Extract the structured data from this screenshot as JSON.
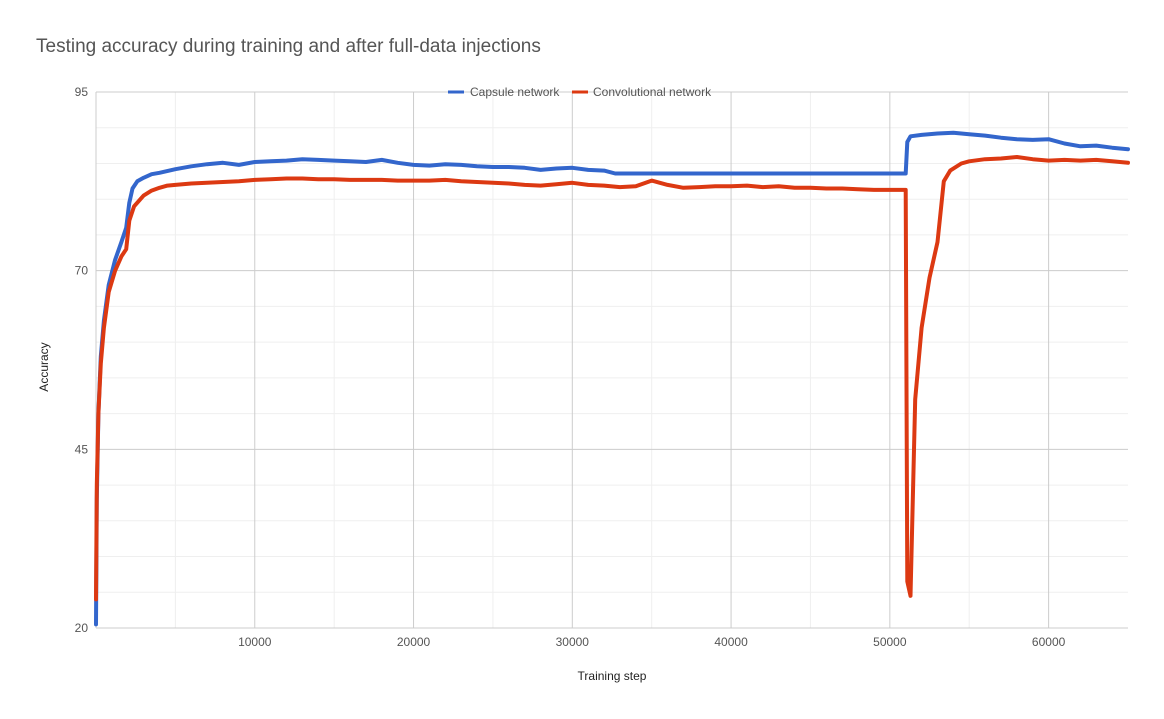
{
  "chart_data": {
    "type": "line",
    "title": "Testing accuracy during training and after full-data injections",
    "xlabel": "Training step",
    "ylabel": "Accuracy",
    "xlim": [
      0,
      65000
    ],
    "ylim": [
      20,
      95
    ],
    "xticks": [
      10000,
      20000,
      30000,
      40000,
      50000,
      60000
    ],
    "yticks": [
      20,
      45,
      70,
      95
    ],
    "grid": true,
    "legend_position": "top",
    "series": [
      {
        "name": "Capsule network",
        "color": "#3366cc",
        "x": [
          0,
          50,
          150,
          300,
          500,
          800,
          1200,
          1600,
          1900,
          2100,
          2300,
          2600,
          3000,
          3500,
          4000,
          5000,
          6000,
          7000,
          8000,
          9000,
          10000,
          11000,
          12000,
          13000,
          14000,
          15000,
          16000,
          17000,
          18000,
          19000,
          20000,
          21000,
          22000,
          23000,
          24000,
          25000,
          26000,
          27000,
          28000,
          29000,
          30000,
          31000,
          32000,
          32700,
          33000,
          40000,
          45000,
          50000,
          51000,
          51100,
          51300,
          52000,
          53000,
          54000,
          55000,
          56000,
          57000,
          58000,
          59000,
          60000,
          61000,
          62000,
          63000,
          64000,
          65000
        ],
        "y": [
          20.5,
          38,
          50,
          58,
          63,
          68,
          71.5,
          74,
          76,
          79.5,
          81.5,
          82.5,
          83,
          83.5,
          83.7,
          84.2,
          84.6,
          84.9,
          85.1,
          84.8,
          85.2,
          85.3,
          85.4,
          85.6,
          85.5,
          85.4,
          85.3,
          85.2,
          85.5,
          85.1,
          84.8,
          84.7,
          84.9,
          84.8,
          84.6,
          84.5,
          84.5,
          84.4,
          84.1,
          84.3,
          84.4,
          84.1,
          84.0,
          83.6,
          83.6,
          83.6,
          83.6,
          83.6,
          83.6,
          88.0,
          88.8,
          89.0,
          89.2,
          89.3,
          89.1,
          88.9,
          88.6,
          88.4,
          88.3,
          88.4,
          87.8,
          87.4,
          87.5,
          87.2,
          87.0
        ]
      },
      {
        "name": "Convolutional network",
        "color": "#dc3912",
        "x": [
          0,
          50,
          150,
          300,
          500,
          800,
          1200,
          1600,
          1900,
          2100,
          2400,
          3000,
          3500,
          4000,
          4500,
          5000,
          6000,
          7000,
          8000,
          9000,
          10000,
          11000,
          12000,
          13000,
          14000,
          15000,
          16000,
          17000,
          18000,
          19000,
          20000,
          21000,
          22000,
          23000,
          24000,
          25000,
          26000,
          27000,
          28000,
          29000,
          30000,
          31000,
          32000,
          33000,
          34000,
          35000,
          36000,
          37000,
          38000,
          39000,
          40000,
          41000,
          42000,
          43000,
          44000,
          45000,
          46000,
          47000,
          48000,
          49000,
          50000,
          51000,
          51100,
          51300,
          51600,
          52000,
          52500,
          53000,
          53400,
          53800,
          54500,
          55000,
          56000,
          57000,
          58000,
          59000,
          60000,
          61000,
          62000,
          63000,
          64000,
          65000
        ],
        "y": [
          24,
          40,
          50,
          57,
          62,
          67,
          70,
          72,
          73,
          77,
          79,
          80.5,
          81.2,
          81.6,
          81.9,
          82,
          82.2,
          82.3,
          82.4,
          82.5,
          82.7,
          82.8,
          82.9,
          82.9,
          82.8,
          82.8,
          82.7,
          82.7,
          82.7,
          82.6,
          82.6,
          82.6,
          82.7,
          82.5,
          82.4,
          82.3,
          82.2,
          82.0,
          81.9,
          82.1,
          82.3,
          82.0,
          81.9,
          81.7,
          81.8,
          82.6,
          82.0,
          81.6,
          81.7,
          81.8,
          81.8,
          81.9,
          81.7,
          81.8,
          81.6,
          81.6,
          81.5,
          81.5,
          81.4,
          81.3,
          81.3,
          81.3,
          26.5,
          24.5,
          52,
          62,
          69,
          74,
          82.5,
          84.0,
          85.0,
          85.3,
          85.6,
          85.7,
          85.9,
          85.6,
          85.4,
          85.5,
          85.4,
          85.5,
          85.3,
          85.1
        ]
      }
    ]
  }
}
